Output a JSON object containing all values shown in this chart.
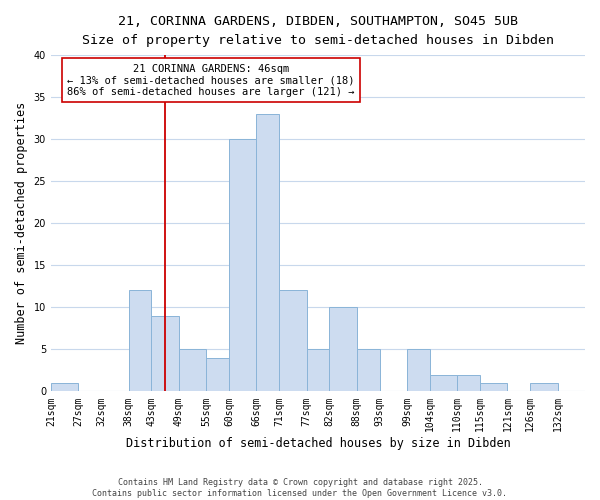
{
  "title_line1": "21, CORINNA GARDENS, DIBDEN, SOUTHAMPTON, SO45 5UB",
  "title_line2": "Size of property relative to semi-detached houses in Dibden",
  "xlabel": "Distribution of semi-detached houses by size in Dibden",
  "ylabel": "Number of semi-detached properties",
  "bin_labels": [
    "21sqm",
    "27sqm",
    "32sqm",
    "38sqm",
    "43sqm",
    "49sqm",
    "55sqm",
    "60sqm",
    "66sqm",
    "71sqm",
    "77sqm",
    "82sqm",
    "88sqm",
    "93sqm",
    "99sqm",
    "104sqm",
    "110sqm",
    "115sqm",
    "121sqm",
    "126sqm",
    "132sqm"
  ],
  "bin_edges": [
    21,
    27,
    32,
    38,
    43,
    49,
    55,
    60,
    66,
    71,
    77,
    82,
    88,
    93,
    99,
    104,
    110,
    115,
    121,
    126,
    132,
    138
  ],
  "counts": [
    1,
    0,
    0,
    12,
    9,
    5,
    4,
    30,
    33,
    12,
    5,
    10,
    5,
    0,
    5,
    2,
    2,
    1,
    0,
    1,
    0
  ],
  "bar_color": "#cddcf0",
  "bar_edge_color": "#8ab4d8",
  "property_line_x": 46,
  "property_line_color": "#cc0000",
  "annotation_title": "21 CORINNA GARDENS: 46sqm",
  "annotation_line1": "← 13% of semi-detached houses are smaller (18)",
  "annotation_line2": "86% of semi-detached houses are larger (121) →",
  "annotation_box_color": "#ffffff",
  "annotation_box_edge": "#cc0000",
  "ylim": [
    0,
    40
  ],
  "yticks": [
    0,
    5,
    10,
    15,
    20,
    25,
    30,
    35,
    40
  ],
  "footer_line1": "Contains HM Land Registry data © Crown copyright and database right 2025.",
  "footer_line2": "Contains public sector information licensed under the Open Government Licence v3.0.",
  "background_color": "#ffffff",
  "grid_color": "#c8d8ec",
  "title_fontsize": 9.5,
  "subtitle_fontsize": 9,
  "axis_label_fontsize": 8.5,
  "tick_fontsize": 7,
  "annotation_fontsize": 7.5,
  "footer_fontsize": 6
}
